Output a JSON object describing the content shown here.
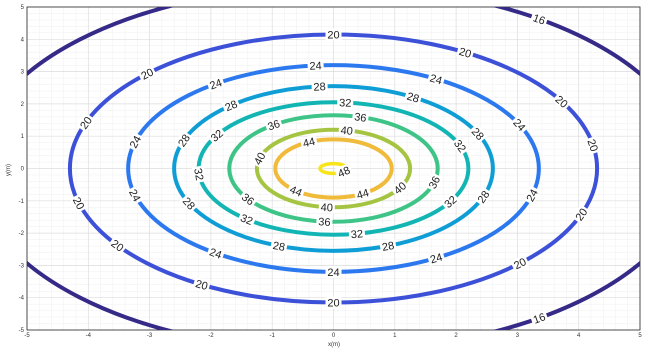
{
  "chart_data": {
    "type": "contour",
    "xlabel": "x(m)",
    "ylabel": "y(m)",
    "xlim": [
      -5,
      5
    ],
    "ylim": [
      -5,
      5
    ],
    "xticks": [
      -5,
      -4,
      -3,
      -2,
      -1,
      0,
      1,
      2,
      3,
      4,
      5
    ],
    "yticks": [
      -5,
      -4,
      -3,
      -2,
      -1,
      0,
      1,
      2,
      3,
      4,
      5
    ],
    "grid": "minor",
    "center": {
      "x": 0,
      "y": 0
    },
    "peak_value": 48,
    "levels": [
      {
        "value": 16,
        "a": 5.85,
        "b": 5.65,
        "color": "#352a87"
      },
      {
        "value": 20,
        "a": 4.3,
        "b": 4.15,
        "color": "#3d51d8"
      },
      {
        "value": 24,
        "a": 3.35,
        "b": 3.2,
        "color": "#2c79ef"
      },
      {
        "value": 28,
        "a": 2.6,
        "b": 2.55,
        "color": "#0f9dd6"
      },
      {
        "value": 32,
        "a": 2.2,
        "b": 2.05,
        "color": "#12b5b3"
      },
      {
        "value": 36,
        "a": 1.7,
        "b": 1.65,
        "color": "#3fc487"
      },
      {
        "value": 40,
        "a": 1.25,
        "b": 1.2,
        "color": "#a5c542"
      },
      {
        "value": 44,
        "a": 0.95,
        "b": 0.9,
        "color": "#f0bb3a"
      },
      {
        "value": 48,
        "a": 0.22,
        "b": 0.15,
        "color": "#f7e51a"
      }
    ],
    "label_angles": {
      "16": [
        55,
        120,
        160,
        200,
        240,
        305,
        340,
        20
      ],
      "20": [
        90,
        60,
        30,
        10,
        340,
        315,
        270,
        240,
        215,
        195,
        160,
        135
      ],
      "24": [
        95,
        60,
        25,
        345,
        300,
        270,
        235,
        195,
        165,
        125
      ],
      "28": [
        95,
        60,
        25,
        340,
        290,
        250,
        205,
        160,
        130
      ],
      "32": [
        85,
        150,
        185,
        230,
        280,
        330,
        20
      ],
      "36": [
        75,
        125,
        215,
        265,
        345
      ],
      "40": [
        80,
        165,
        265,
        330
      ],
      "44": [
        115,
        230,
        300
      ],
      "48": [
        320
      ]
    }
  }
}
